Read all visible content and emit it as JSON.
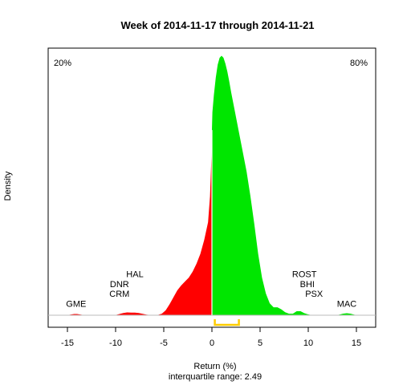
{
  "chart_data": {
    "type": "area",
    "title": "Week of 2014-11-17 through 2014-11-21",
    "xlabel": "Return (%)",
    "ylabel": "Density",
    "subtitle": "interquartile range: 2.49",
    "xlim": [
      -17,
      17
    ],
    "ylim": [
      0,
      0.26
    ],
    "xticks": [
      -15,
      -10,
      -5,
      0,
      5,
      10,
      15
    ],
    "neg_share_label": "20%",
    "pos_share_label": "80%",
    "neg_color": "#ff0000",
    "pos_color": "#00e600",
    "share_neg_color": "#ff0000",
    "share_pos_color": "#008000",
    "iqr": [
      0.3,
      2.8
    ],
    "iqr_color": "#ffcc00",
    "density": {
      "x": [
        -15,
        -14.7,
        -14.3,
        -14,
        -13.6,
        -13.2,
        -12,
        -11,
        -10.2,
        -10,
        -9.6,
        -9.2,
        -8.8,
        -8.4,
        -8,
        -7.6,
        -7.2,
        -6.8,
        -6.4,
        -6,
        -5.6,
        -5.2,
        -4.8,
        -4.4,
        -4,
        -3.6,
        -3.2,
        -2.8,
        -2.4,
        -2,
        -1.6,
        -1.2,
        -0.8,
        -0.4,
        -0.2,
        -0.05,
        0,
        0.05,
        0.2,
        0.4,
        0.6,
        0.8,
        1.0,
        1.2,
        1.4,
        1.6,
        1.8,
        2.0,
        2.4,
        2.8,
        3.2,
        3.6,
        4.0,
        4.4,
        4.8,
        5.2,
        5.6,
        6.0,
        6.4,
        6.8,
        7.2,
        7.6,
        8.0,
        8.4,
        8.8,
        9.2,
        9.6,
        10.0,
        10.4,
        10.8,
        11.2,
        11.6,
        12.0,
        12.4,
        12.8,
        13.2,
        13.6,
        14.0,
        14.4,
        14.8,
        15.2,
        15.6
      ],
      "y": [
        0.0,
        0.0006,
        0.0012,
        0.0012,
        0.0006,
        0.0,
        0.0,
        0.0,
        0.0,
        0.0002,
        0.0012,
        0.0022,
        0.0028,
        0.0026,
        0.0026,
        0.0022,
        0.0014,
        0.0006,
        0.0002,
        0.0,
        0.0003,
        0.0015,
        0.005,
        0.011,
        0.018,
        0.025,
        0.03,
        0.034,
        0.038,
        0.044,
        0.052,
        0.062,
        0.076,
        0.094,
        0.12,
        0.16,
        0.187,
        0.205,
        0.222,
        0.24,
        0.253,
        0.26,
        0.262,
        0.26,
        0.254,
        0.246,
        0.236,
        0.225,
        0.205,
        0.185,
        0.165,
        0.145,
        0.12,
        0.092,
        0.062,
        0.038,
        0.022,
        0.012,
        0.008,
        0.008,
        0.006,
        0.003,
        0.0015,
        0.0015,
        0.004,
        0.004,
        0.002,
        0.0008,
        0.0,
        0.0,
        0.0,
        0.0,
        0.0,
        0.0,
        0.0,
        0.0005,
        0.0015,
        0.002,
        0.0015,
        0.0005,
        0.0,
        0.0
      ]
    },
    "annotations": [
      {
        "text": "GME",
        "x": -14.1,
        "y": 0.0085
      },
      {
        "text": "CRM",
        "x": -9.6,
        "y": 0.0185
      },
      {
        "text": "DNR",
        "x": -9.6,
        "y": 0.0285
      },
      {
        "text": "HAL",
        "x": -8.0,
        "y": 0.0385
      },
      {
        "text": "ROST",
        "x": 9.6,
        "y": 0.0385
      },
      {
        "text": "BHI",
        "x": 9.9,
        "y": 0.0285
      },
      {
        "text": "PSX",
        "x": 10.6,
        "y": 0.0185
      },
      {
        "text": "MAC",
        "x": 14.0,
        "y": 0.0085
      }
    ]
  }
}
